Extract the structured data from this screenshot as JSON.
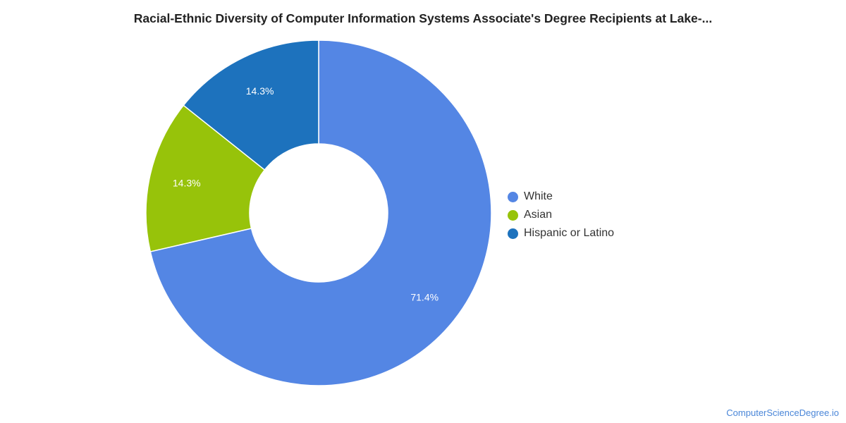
{
  "chart_data": {
    "type": "pie",
    "title": "Racial-Ethnic Diversity of Computer Information Systems Associate's Degree Recipients at Lake-...",
    "donut": true,
    "legend_position": "right",
    "slices": [
      {
        "name": "White",
        "value": 71.4,
        "label": "71.4%",
        "color": "#5486e4"
      },
      {
        "name": "Asian",
        "value": 14.3,
        "label": "14.3%",
        "color": "#97c30a"
      },
      {
        "name": "Hispanic or Latino",
        "value": 14.3,
        "label": "14.3%",
        "color": "#1d72bd"
      }
    ]
  },
  "watermark": "ComputerScienceDegree.io"
}
